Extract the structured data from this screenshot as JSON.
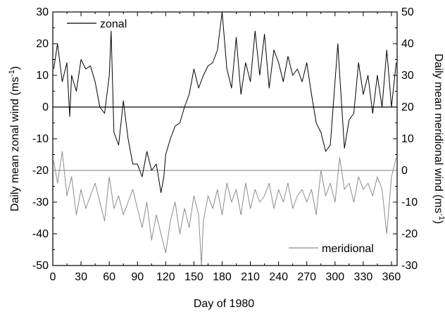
{
  "chart_data": {
    "type": "line",
    "title": "",
    "xlabel": "Day of 1980",
    "ylabel_left": "Daily mean zonal wind (ms",
    "ylabel_left_sup": "-1",
    "ylabel_left_end": ")",
    "ylabel_right": "Daily mean meridional wind (ms",
    "ylabel_right_sup": "-1",
    "ylabel_right_end": ")",
    "xlim": [
      0,
      366
    ],
    "ylim_left": [
      -50,
      30
    ],
    "ylim_right": [
      -30,
      50
    ],
    "xticks": [
      "0",
      "30",
      "60",
      "90",
      "120",
      "150",
      "180",
      "210",
      "240",
      "270",
      "300",
      "330",
      "360"
    ],
    "yticks_left": [
      "-50",
      "-40",
      "-30",
      "-20",
      "-10",
      "0",
      "10",
      "20",
      "30"
    ],
    "yticks_right": [
      "-30",
      "-20",
      "-10",
      "0",
      "10",
      "20",
      "30",
      "40",
      "50"
    ],
    "reference_lines": [
      {
        "axis": "left",
        "y": 0,
        "color": "#000000"
      },
      {
        "axis": "right",
        "y": 0,
        "color": "#999999"
      }
    ],
    "grid": false,
    "series": [
      {
        "name": "zonal",
        "axis": "left",
        "color": "#000000",
        "x": [
          1,
          5,
          10,
          15,
          18,
          20,
          25,
          30,
          35,
          40,
          45,
          50,
          55,
          60,
          62,
          65,
          70,
          75,
          80,
          85,
          90,
          95,
          100,
          105,
          110,
          115,
          118,
          120,
          125,
          130,
          135,
          140,
          145,
          150,
          155,
          160,
          165,
          170,
          175,
          180,
          185,
          190,
          195,
          200,
          205,
          210,
          215,
          220,
          225,
          230,
          235,
          240,
          245,
          250,
          255,
          260,
          265,
          270,
          275,
          280,
          285,
          290,
          295,
          300,
          303,
          305,
          310,
          315,
          320,
          325,
          330,
          335,
          340,
          345,
          350,
          355,
          360,
          365
        ],
        "y": [
          12,
          20,
          8,
          14,
          -3,
          10,
          5,
          15,
          12,
          13,
          8,
          0,
          -2,
          10,
          24,
          -8,
          -12,
          2,
          -10,
          -18,
          -18,
          -22,
          -14,
          -20,
          -18,
          -27,
          -22,
          -15,
          -10,
          -6,
          -5,
          0,
          4,
          12,
          6,
          10,
          13,
          14,
          18,
          30,
          12,
          6,
          22,
          4,
          14,
          8,
          24,
          10,
          23,
          6,
          18,
          14,
          8,
          16,
          10,
          12,
          8,
          14,
          4,
          -5,
          -8,
          -14,
          -12,
          8,
          20,
          10,
          -13,
          -4,
          -2,
          14,
          4,
          10,
          -2,
          10,
          0,
          18,
          0,
          14
        ]
      },
      {
        "name": "meridional",
        "axis": "right",
        "color": "#8c8c8c",
        "x": [
          1,
          5,
          10,
          15,
          20,
          25,
          30,
          35,
          40,
          45,
          50,
          55,
          60,
          65,
          70,
          75,
          80,
          85,
          90,
          95,
          100,
          105,
          110,
          115,
          120,
          125,
          130,
          135,
          140,
          145,
          150,
          155,
          158,
          160,
          165,
          170,
          175,
          180,
          185,
          190,
          195,
          200,
          205,
          210,
          215,
          220,
          225,
          230,
          235,
          240,
          245,
          250,
          255,
          260,
          265,
          270,
          275,
          280,
          285,
          290,
          295,
          300,
          305,
          310,
          315,
          320,
          325,
          330,
          335,
          340,
          345,
          350,
          355,
          360,
          365
        ],
        "y": [
          3,
          -4,
          6,
          -8,
          -2,
          -14,
          -6,
          -12,
          -8,
          -4,
          -10,
          -16,
          -2,
          -12,
          -8,
          -14,
          -10,
          -6,
          -12,
          -18,
          -10,
          -22,
          -14,
          -20,
          -26,
          -16,
          -10,
          -20,
          -12,
          -18,
          -8,
          -14,
          -30,
          -16,
          -8,
          -12,
          -6,
          -14,
          -4,
          -10,
          -6,
          -14,
          -4,
          -12,
          -6,
          -10,
          -8,
          -4,
          -12,
          -6,
          -10,
          -4,
          -12,
          -8,
          -6,
          -10,
          -6,
          -14,
          0,
          -8,
          -4,
          -10,
          4,
          -6,
          -4,
          -10,
          -2,
          -6,
          -4,
          -8,
          -2,
          -6,
          -20,
          -2,
          4
        ]
      }
    ]
  }
}
